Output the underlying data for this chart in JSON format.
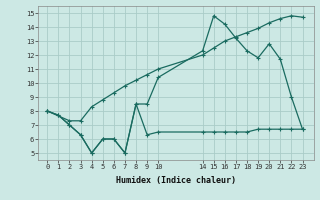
{
  "xlabel": "Humidex (Indice chaleur)",
  "background_color": "#cce8e4",
  "grid_color": "#aaccc8",
  "line_color": "#1a6b60",
  "ylim": [
    4.5,
    15.5
  ],
  "yticks": [
    5,
    6,
    7,
    8,
    9,
    10,
    11,
    12,
    13,
    14,
    15
  ],
  "xticks": [
    0,
    1,
    2,
    3,
    4,
    5,
    6,
    7,
    8,
    9,
    10,
    14,
    15,
    16,
    17,
    18,
    19,
    20,
    21,
    22,
    23
  ],
  "xlim": [
    -0.8,
    24.0
  ],
  "line1_x": [
    0,
    1,
    2,
    3,
    4,
    5,
    6,
    7,
    8,
    9,
    10,
    14,
    15,
    16,
    17,
    18,
    19,
    20,
    21,
    22,
    23
  ],
  "line1_y": [
    8.0,
    7.7,
    7.0,
    6.3,
    5.0,
    6.0,
    6.0,
    5.0,
    8.5,
    6.3,
    6.5,
    6.5,
    6.5,
    6.5,
    6.5,
    6.5,
    6.7,
    6.7,
    6.7,
    6.7,
    6.7
  ],
  "line2_x": [
    0,
    1,
    2,
    3,
    4,
    5,
    6,
    7,
    8,
    9,
    10,
    14,
    15,
    16,
    17,
    18,
    19,
    20,
    21,
    22,
    23
  ],
  "line2_y": [
    8.0,
    7.7,
    7.0,
    6.3,
    5.0,
    6.0,
    6.0,
    5.0,
    8.5,
    8.5,
    10.4,
    12.3,
    14.8,
    14.2,
    13.2,
    12.3,
    11.8,
    12.8,
    11.7,
    9.0,
    6.7
  ],
  "line3_x": [
    0,
    2,
    3,
    4,
    5,
    6,
    7,
    8,
    9,
    10,
    14,
    15,
    16,
    17,
    18,
    19,
    20,
    21,
    22,
    23
  ],
  "line3_y": [
    8.0,
    7.3,
    7.3,
    8.3,
    8.8,
    9.3,
    9.8,
    10.2,
    10.6,
    11.0,
    12.0,
    12.5,
    13.0,
    13.3,
    13.6,
    13.9,
    14.3,
    14.6,
    14.8,
    14.7
  ]
}
